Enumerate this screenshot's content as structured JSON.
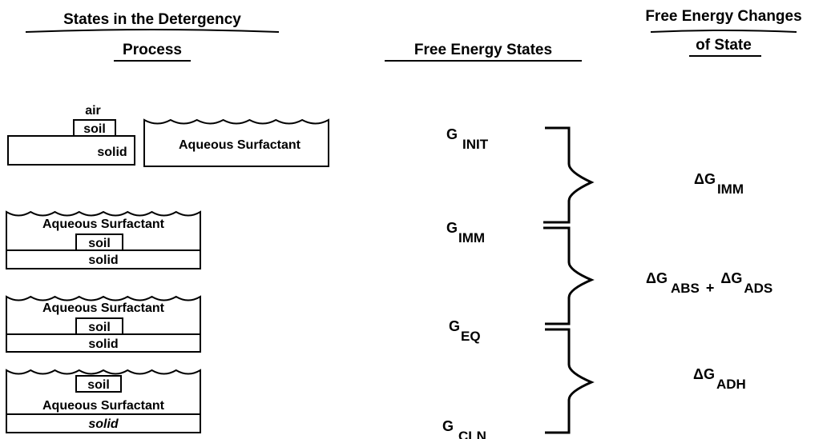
{
  "headers": {
    "states": [
      "States in the Detergency",
      "Process"
    ],
    "energy_states": "Free Energy States",
    "changes": [
      "Free Energy Changes",
      "of State"
    ]
  },
  "panels": [
    {
      "air": "air",
      "soil": "soil",
      "solid": "solid",
      "liquid": "Aqueous Surfactant"
    },
    {
      "liquid": "Aqueous Surfactant",
      "soil": "soil",
      "solid": "solid"
    },
    {
      "liquid": "Aqueous Surfactant",
      "soil": "soil",
      "solid": "solid"
    },
    {
      "soil": "soil",
      "liquid": "Aqueous Surfactant",
      "solid": "solid"
    }
  ],
  "energy_states": [
    {
      "symbol": "G",
      "sub": "INIT"
    },
    {
      "symbol": "G",
      "sub": "IMM"
    },
    {
      "symbol": "G",
      "sub": "EQ"
    },
    {
      "symbol": "G",
      "sub": "CLN"
    }
  ],
  "changes": [
    {
      "terms": [
        {
          "symbol": "ΔG",
          "sub": "IMM"
        }
      ]
    },
    {
      "terms": [
        {
          "symbol": "ΔG",
          "sub": "ABS"
        },
        {
          "symbol": "ΔG",
          "sub": "ADS"
        }
      ],
      "operator": "+"
    },
    {
      "terms": [
        {
          "symbol": "ΔG",
          "sub": "ADH"
        }
      ]
    }
  ]
}
